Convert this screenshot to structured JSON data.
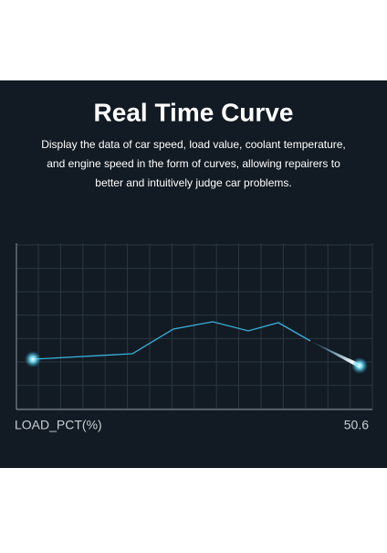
{
  "header": {
    "title": "Real Time Curve",
    "description": [
      "Display the data of car speed, load value, coolant temperature,",
      "and engine speed in the form of curves, allowing repairers to",
      "better and intuitively judge car problems."
    ]
  },
  "curve": {
    "label": "LOAD_PCT(%)",
    "value": 50.6
  }
}
